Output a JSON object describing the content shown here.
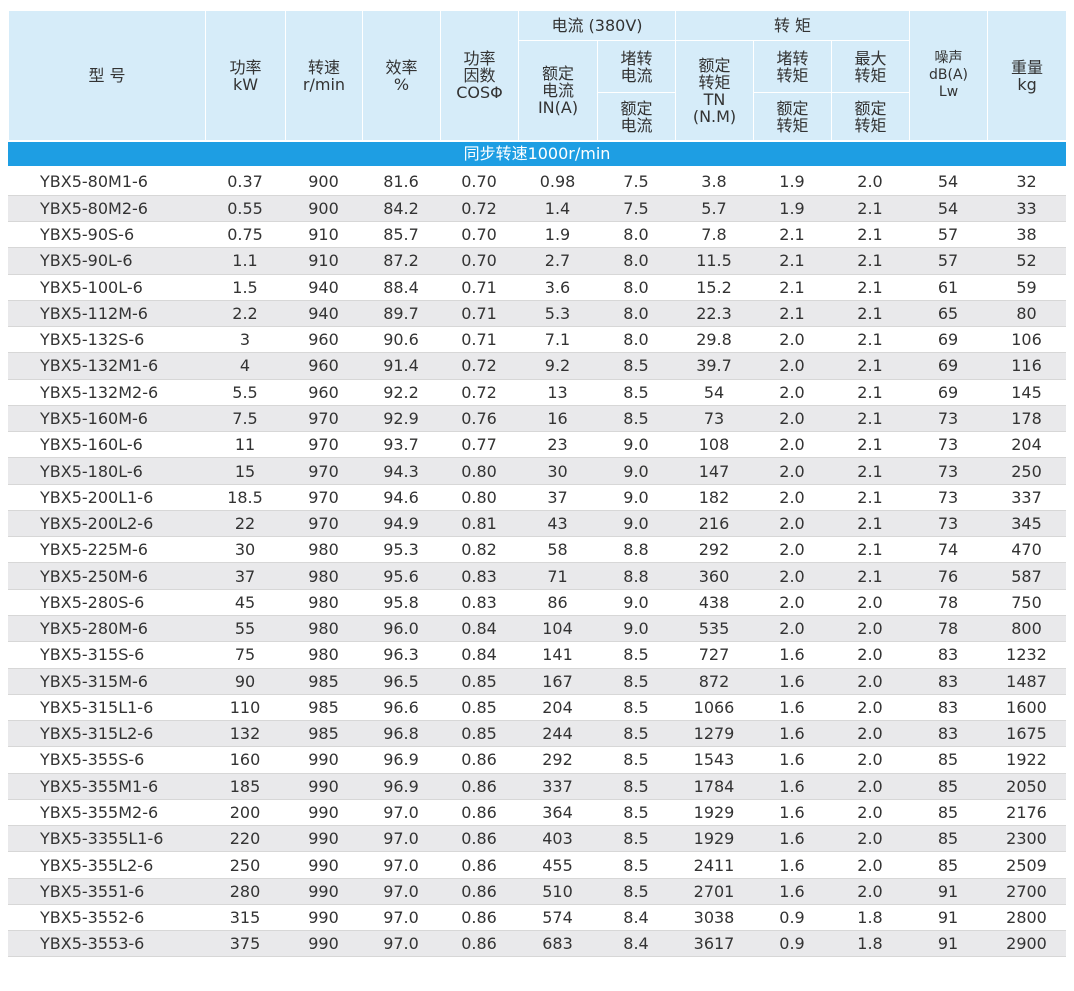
{
  "header": {
    "model": "型 号",
    "power": [
      "功率",
      "kW"
    ],
    "speed": [
      "转速",
      "r/min"
    ],
    "efficiency": [
      "效率",
      "%"
    ],
    "power_factor": [
      "功率",
      "因数",
      "COSΦ"
    ],
    "current": "电流 (380V)",
    "rated_current": [
      "额定",
      "电流",
      "IN(A)"
    ],
    "locked_current": [
      "堵转",
      "电流"
    ],
    "locked_current_ratio": [
      "额定",
      "电流"
    ],
    "torque": "转 矩",
    "rated_torque": [
      "额定",
      "转矩",
      "TN",
      "(N.M)"
    ],
    "locked_torque": [
      "堵转",
      "转矩"
    ],
    "locked_torque_ratio": [
      "额定",
      "转矩"
    ],
    "max_torque": [
      "最大",
      "转矩"
    ],
    "max_torque_ratio": [
      "额定",
      "转矩"
    ],
    "noise": [
      "噪声",
      "dB(A)",
      "Lw"
    ],
    "weight": [
      "重量",
      "kg"
    ]
  },
  "section": "同步转速1000r/min",
  "rows": [
    [
      "YBX5-80M1-6",
      "0.37",
      "900",
      "81.6",
      "0.70",
      "0.98",
      "7.5",
      "3.8",
      "1.9",
      "2.0",
      "54",
      "32"
    ],
    [
      "YBX5-80M2-6",
      "0.55",
      "900",
      "84.2",
      "0.72",
      "1.4",
      "7.5",
      "5.7",
      "1.9",
      "2.1",
      "54",
      "33"
    ],
    [
      "YBX5-90S-6",
      "0.75",
      "910",
      "85.7",
      "0.70",
      "1.9",
      "8.0",
      "7.8",
      "2.1",
      "2.1",
      "57",
      "38"
    ],
    [
      "YBX5-90L-6",
      "1.1",
      "910",
      "87.2",
      "0.70",
      "2.7",
      "8.0",
      "11.5",
      "2.1",
      "2.1",
      "57",
      "52"
    ],
    [
      "YBX5-100L-6",
      "1.5",
      "940",
      "88.4",
      "0.71",
      "3.6",
      "8.0",
      "15.2",
      "2.1",
      "2.1",
      "61",
      "59"
    ],
    [
      "YBX5-112M-6",
      "2.2",
      "940",
      "89.7",
      "0.71",
      "5.3",
      "8.0",
      "22.3",
      "2.1",
      "2.1",
      "65",
      "80"
    ],
    [
      "YBX5-132S-6",
      "3",
      "960",
      "90.6",
      "0.71",
      "7.1",
      "8.0",
      "29.8",
      "2.0",
      "2.1",
      "69",
      "106"
    ],
    [
      "YBX5-132M1-6",
      "4",
      "960",
      "91.4",
      "0.72",
      "9.2",
      "8.5",
      "39.7",
      "2.0",
      "2.1",
      "69",
      "116"
    ],
    [
      "YBX5-132M2-6",
      "5.5",
      "960",
      "92.2",
      "0.72",
      "13",
      "8.5",
      "54",
      "2.0",
      "2.1",
      "69",
      "145"
    ],
    [
      "YBX5-160M-6",
      "7.5",
      "970",
      "92.9",
      "0.76",
      "16",
      "8.5",
      "73",
      "2.0",
      "2.1",
      "73",
      "178"
    ],
    [
      "YBX5-160L-6",
      "11",
      "970",
      "93.7",
      "0.77",
      "23",
      "9.0",
      "108",
      "2.0",
      "2.1",
      "73",
      "204"
    ],
    [
      "YBX5-180L-6",
      "15",
      "970",
      "94.3",
      "0.80",
      "30",
      "9.0",
      "147",
      "2.0",
      "2.1",
      "73",
      "250"
    ],
    [
      "YBX5-200L1-6",
      "18.5",
      "970",
      "94.6",
      "0.80",
      "37",
      "9.0",
      "182",
      "2.0",
      "2.1",
      "73",
      "337"
    ],
    [
      "YBX5-200L2-6",
      "22",
      "970",
      "94.9",
      "0.81",
      "43",
      "9.0",
      "216",
      "2.0",
      "2.1",
      "73",
      "345"
    ],
    [
      "YBX5-225M-6",
      "30",
      "980",
      "95.3",
      "0.82",
      "58",
      "8.8",
      "292",
      "2.0",
      "2.1",
      "74",
      "470"
    ],
    [
      "YBX5-250M-6",
      "37",
      "980",
      "95.6",
      "0.83",
      "71",
      "8.8",
      "360",
      "2.0",
      "2.1",
      "76",
      "587"
    ],
    [
      "YBX5-280S-6",
      "45",
      "980",
      "95.8",
      "0.83",
      "86",
      "9.0",
      "438",
      "2.0",
      "2.0",
      "78",
      "750"
    ],
    [
      "YBX5-280M-6",
      "55",
      "980",
      "96.0",
      "0.84",
      "104",
      "9.0",
      "535",
      "2.0",
      "2.0",
      "78",
      "800"
    ],
    [
      "YBX5-315S-6",
      "75",
      "980",
      "96.3",
      "0.84",
      "141",
      "8.5",
      "727",
      "1.6",
      "2.0",
      "83",
      "1232"
    ],
    [
      "YBX5-315M-6",
      "90",
      "985",
      "96.5",
      "0.85",
      "167",
      "8.5",
      "872",
      "1.6",
      "2.0",
      "83",
      "1487"
    ],
    [
      "YBX5-315L1-6",
      "110",
      "985",
      "96.6",
      "0.85",
      "204",
      "8.5",
      "1066",
      "1.6",
      "2.0",
      "83",
      "1600"
    ],
    [
      "YBX5-315L2-6",
      "132",
      "985",
      "96.8",
      "0.85",
      "244",
      "8.5",
      "1279",
      "1.6",
      "2.0",
      "83",
      "1675"
    ],
    [
      "YBX5-355S-6",
      "160",
      "990",
      "96.9",
      "0.86",
      "292",
      "8.5",
      "1543",
      "1.6",
      "2.0",
      "85",
      "1922"
    ],
    [
      "YBX5-355M1-6",
      "185",
      "990",
      "96.9",
      "0.86",
      "337",
      "8.5",
      "1784",
      "1.6",
      "2.0",
      "85",
      "2050"
    ],
    [
      "YBX5-355M2-6",
      "200",
      "990",
      "97.0",
      "0.86",
      "364",
      "8.5",
      "1929",
      "1.6",
      "2.0",
      "85",
      "2176"
    ],
    [
      "YBX5-3355L1-6",
      "220",
      "990",
      "97.0",
      "0.86",
      "403",
      "8.5",
      "1929",
      "1.6",
      "2.0",
      "85",
      "2300"
    ],
    [
      "YBX5-355L2-6",
      "250",
      "990",
      "97.0",
      "0.86",
      "455",
      "8.5",
      "2411",
      "1.6",
      "2.0",
      "85",
      "2509"
    ],
    [
      "YBX5-3551-6",
      "280",
      "990",
      "97.0",
      "0.86",
      "510",
      "8.5",
      "2701",
      "1.6",
      "2.0",
      "91",
      "2700"
    ],
    [
      "YBX5-3552-6",
      "315",
      "990",
      "97.0",
      "0.86",
      "574",
      "8.4",
      "3038",
      "0.9",
      "1.8",
      "91",
      "2800"
    ],
    [
      "YBX5-3553-6",
      "375",
      "990",
      "97.0",
      "0.86",
      "683",
      "8.4",
      "3617",
      "0.9",
      "1.8",
      "91",
      "2900"
    ]
  ]
}
